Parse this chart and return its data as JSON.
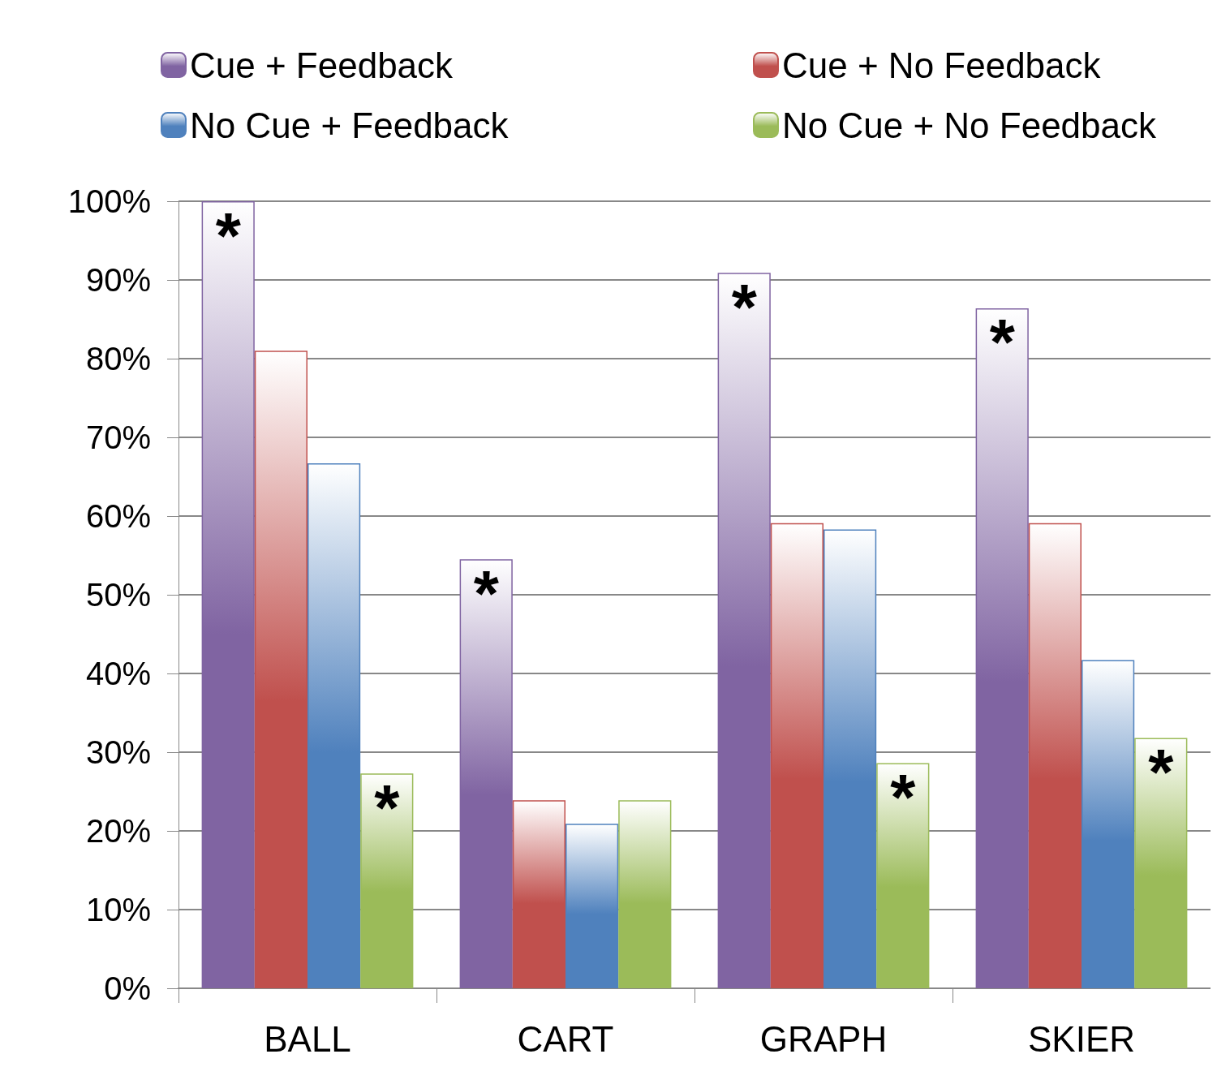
{
  "chart_data": {
    "type": "bar",
    "categories": [
      "BALL",
      "CART",
      "GRAPH",
      "SKIER"
    ],
    "series": [
      {
        "name": "Cue + Feedback",
        "color": "#8064a2",
        "values": [
          100,
          54.5,
          90.9,
          86.4
        ],
        "value_labels": [
          "*",
          "*",
          "*",
          "*"
        ]
      },
      {
        "name": "Cue + No Feedback",
        "color": "#c0504d",
        "values": [
          81,
          23.9,
          59.1,
          59.1
        ]
      },
      {
        "name": "No Cue + Feedback",
        "color": "#4f81bd",
        "values": [
          66.7,
          20.9,
          58.3,
          41.7
        ]
      },
      {
        "name": "No Cue + No Feedback",
        "color": "#9bbb59",
        "values": [
          27.3,
          23.9,
          28.6,
          31.8
        ],
        "value_labels": [
          "*",
          null,
          "*",
          "*"
        ]
      }
    ],
    "ylim": [
      0,
      100
    ],
    "yticks": [
      {
        "value": 0,
        "label": "0%"
      },
      {
        "value": 10,
        "label": "10%"
      },
      {
        "value": 20,
        "label": "20%"
      },
      {
        "value": 30,
        "label": "30%"
      },
      {
        "value": 40,
        "label": "40%"
      },
      {
        "value": 50,
        "label": "50%"
      },
      {
        "value": 60,
        "label": "60%"
      },
      {
        "value": 70,
        "label": "70%"
      },
      {
        "value": 80,
        "label": "80%"
      },
      {
        "value": 90,
        "label": "90%"
      },
      {
        "value": 100,
        "label": "100%"
      }
    ],
    "grid": "y",
    "legend": "top"
  }
}
